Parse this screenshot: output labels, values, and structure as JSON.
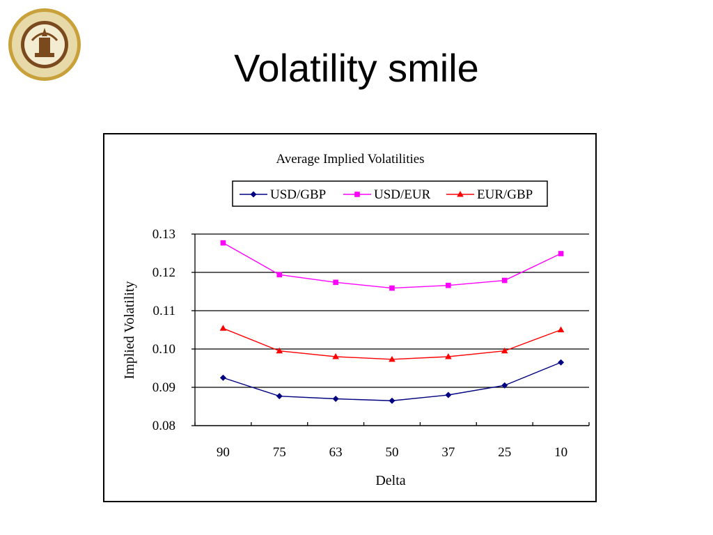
{
  "slide": {
    "title": "Volatility smile",
    "logo_icon": "university-seal-icon"
  },
  "chart_data": {
    "type": "line",
    "title": "Average Implied Volatilities",
    "xlabel": "Delta",
    "ylabel": "Implied Volatility",
    "categories": [
      "90",
      "75",
      "63",
      "50",
      "37",
      "25",
      "10"
    ],
    "ylim": [
      0.08,
      0.13
    ],
    "yticks": [
      "0.08",
      "0.09",
      "0.10",
      "0.11",
      "0.12",
      "0.13"
    ],
    "grid": "horizontal",
    "legend_position": "top",
    "series": [
      {
        "name": "USD/GBP",
        "color": "#000080",
        "marker": "diamond",
        "values": [
          0.0925,
          0.0877,
          0.087,
          0.0865,
          0.088,
          0.0905,
          0.0965
        ]
      },
      {
        "name": "USD/EUR",
        "color": "#ff00ff",
        "marker": "square",
        "values": [
          0.1277,
          0.1194,
          0.1174,
          0.1159,
          0.1166,
          0.1179,
          0.1249
        ]
      },
      {
        "name": "EUR/GBP",
        "color": "#ff0000",
        "marker": "triangle",
        "values": [
          0.1054,
          0.0995,
          0.098,
          0.0973,
          0.098,
          0.0995,
          0.105
        ]
      }
    ]
  }
}
